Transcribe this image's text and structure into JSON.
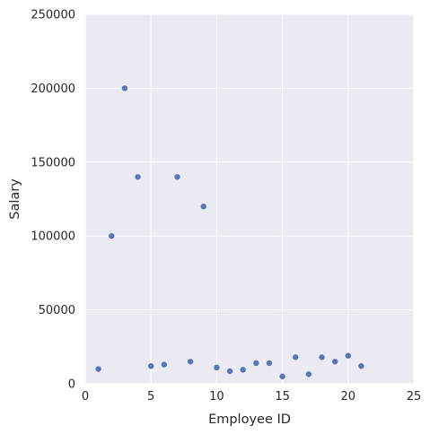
{
  "chart_data": {
    "type": "scatter",
    "title": "",
    "xlabel": "Employee ID",
    "ylabel": "Salary",
    "xlim": [
      0,
      25
    ],
    "ylim": [
      0,
      250000
    ],
    "xticks": [
      0,
      5,
      10,
      15,
      20,
      25
    ],
    "yticks": [
      0,
      50000,
      100000,
      150000,
      200000,
      250000
    ],
    "grid": true,
    "colors": {
      "background": "#EAEAF2",
      "grid": "#FFFFFF",
      "point": "#5875B8"
    },
    "series": [
      {
        "x": [
          1,
          2,
          3,
          4,
          5,
          6,
          7,
          8,
          9,
          10,
          11,
          12,
          13,
          14,
          15,
          16,
          17,
          18,
          19,
          20,
          21
        ],
        "y": [
          10000,
          100000,
          200000,
          140000,
          12000,
          13000,
          140000,
          15000,
          120000,
          11000,
          8500,
          9500,
          14000,
          14000,
          5000,
          18000,
          6500,
          18000,
          15000,
          19000,
          12000
        ]
      }
    ]
  }
}
